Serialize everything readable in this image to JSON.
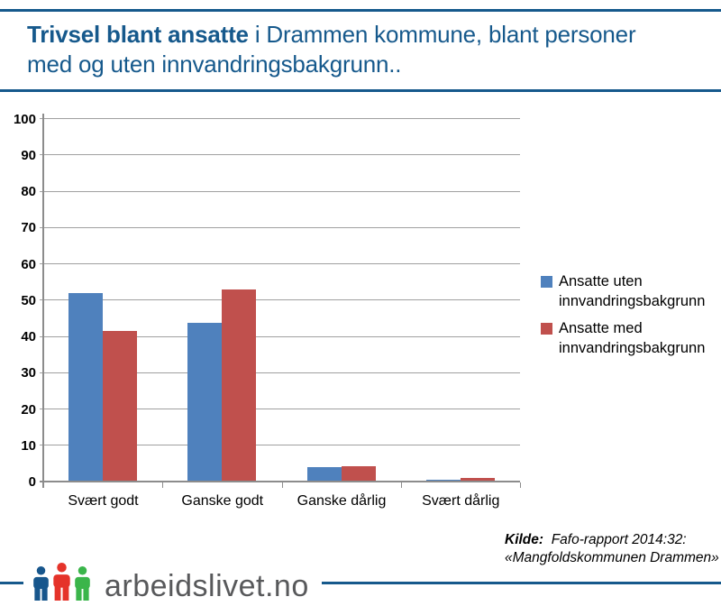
{
  "header": {
    "title_bold": "Trivsel blant ansatte",
    "title_line1_rest": " i Drammen kommune, blant personer",
    "title_line2": "med og uten innvandringsbakgrunn.."
  },
  "chart_data": {
    "type": "bar",
    "title": "Trivsel blant ansatte i Drammen kommune, blant personer med og uten innvandringsbakgrunn..",
    "categories": [
      "Svært godt",
      "Ganske godt",
      "Ganske dårlig",
      "Svært dårlig"
    ],
    "series": [
      {
        "name": "Ansatte uten innvandringsbakgrunn",
        "color": "#4F81BD",
        "values": [
          52,
          43.7,
          3.9,
          0.6
        ]
      },
      {
        "name": "Ansatte med innvandringsbakgrunn",
        "color": "#C0504D",
        "values": [
          41.6,
          53,
          4.1,
          1
        ]
      }
    ],
    "xlabel": "",
    "ylabel": "",
    "ylim": [
      0,
      100
    ],
    "yticks": [
      0,
      10,
      20,
      30,
      40,
      50,
      60,
      70,
      80,
      90,
      100
    ],
    "grid": true,
    "legend_position": "right"
  },
  "source": {
    "label": "Kilde:",
    "line1": "Fafo-rapport 2014:32:",
    "line2": "«Mangfoldskommunen Drammen»"
  },
  "footer": {
    "logo_text": "arbeidslivet.no",
    "icon_colors": [
      "#17568C",
      "#E5332A",
      "#3AB54A"
    ]
  },
  "colors": {
    "brand_blue": "#16598C",
    "series_blue": "#4F81BD",
    "series_red": "#C0504D",
    "axis_gray": "#8C8C8C",
    "grid_gray": "#A0A0A0",
    "logo_gray": "#58595B"
  }
}
